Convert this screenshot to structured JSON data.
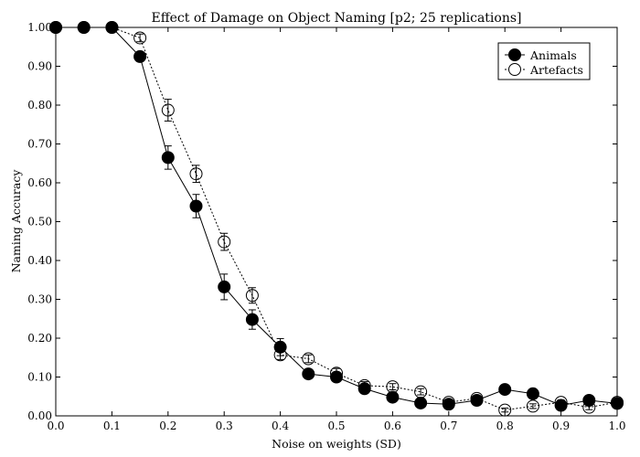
{
  "chart_data": {
    "type": "line",
    "title": "Effect of Damage on Object Naming [p2; 25 replications]",
    "xlabel": "Noise on weights (SD)",
    "ylabel": "Naming Accuracy",
    "xlim": [
      0.0,
      1.0
    ],
    "ylim": [
      0.0,
      1.0
    ],
    "x_ticks": [
      "0.0",
      "0.1",
      "0.2",
      "0.3",
      "0.4",
      "0.5",
      "0.6",
      "0.7",
      "0.8",
      "0.9",
      "1.0"
    ],
    "y_ticks": [
      "0.00",
      "0.10",
      "0.20",
      "0.30",
      "0.40",
      "0.50",
      "0.60",
      "0.70",
      "0.80",
      "0.90",
      "1.00"
    ],
    "grid": false,
    "legend_position": "top-right",
    "x": [
      0.0,
      0.05,
      0.1,
      0.15,
      0.2,
      0.25,
      0.3,
      0.35,
      0.4,
      0.45,
      0.5,
      0.55,
      0.6,
      0.65,
      0.7,
      0.75,
      0.8,
      0.85,
      0.9,
      0.95,
      1.0
    ],
    "series": [
      {
        "name": "Animals",
        "marker": "filled-circle",
        "line_style": "solid",
        "values": [
          1.0,
          1.0,
          1.0,
          0.925,
          0.665,
          0.54,
          0.332,
          0.248,
          0.177,
          0.108,
          0.1,
          0.07,
          0.048,
          0.033,
          0.03,
          0.04,
          0.068,
          0.057,
          0.027,
          0.04,
          0.032
        ],
        "errors": [
          0.005,
          0.005,
          0.005,
          0.012,
          0.03,
          0.03,
          0.033,
          0.025,
          0.022,
          0.012,
          0.012,
          0.012,
          0.008,
          0.005,
          0.006,
          0.008,
          0.01,
          0.008,
          0.006,
          0.007,
          0.005
        ]
      },
      {
        "name": "Artefacts",
        "marker": "open-circle",
        "line_style": "dotted",
        "values": [
          1.0,
          1.0,
          1.0,
          0.973,
          0.787,
          0.623,
          0.448,
          0.31,
          0.157,
          0.147,
          0.11,
          0.078,
          0.075,
          0.062,
          0.035,
          0.045,
          0.015,
          0.025,
          0.035,
          0.022,
          0.035
        ],
        "errors": [
          0.004,
          0.004,
          0.004,
          0.01,
          0.028,
          0.022,
          0.022,
          0.02,
          0.012,
          0.01,
          0.012,
          0.01,
          0.008,
          0.008,
          0.006,
          0.007,
          0.005,
          0.006,
          0.006,
          0.006,
          0.005
        ]
      }
    ]
  }
}
